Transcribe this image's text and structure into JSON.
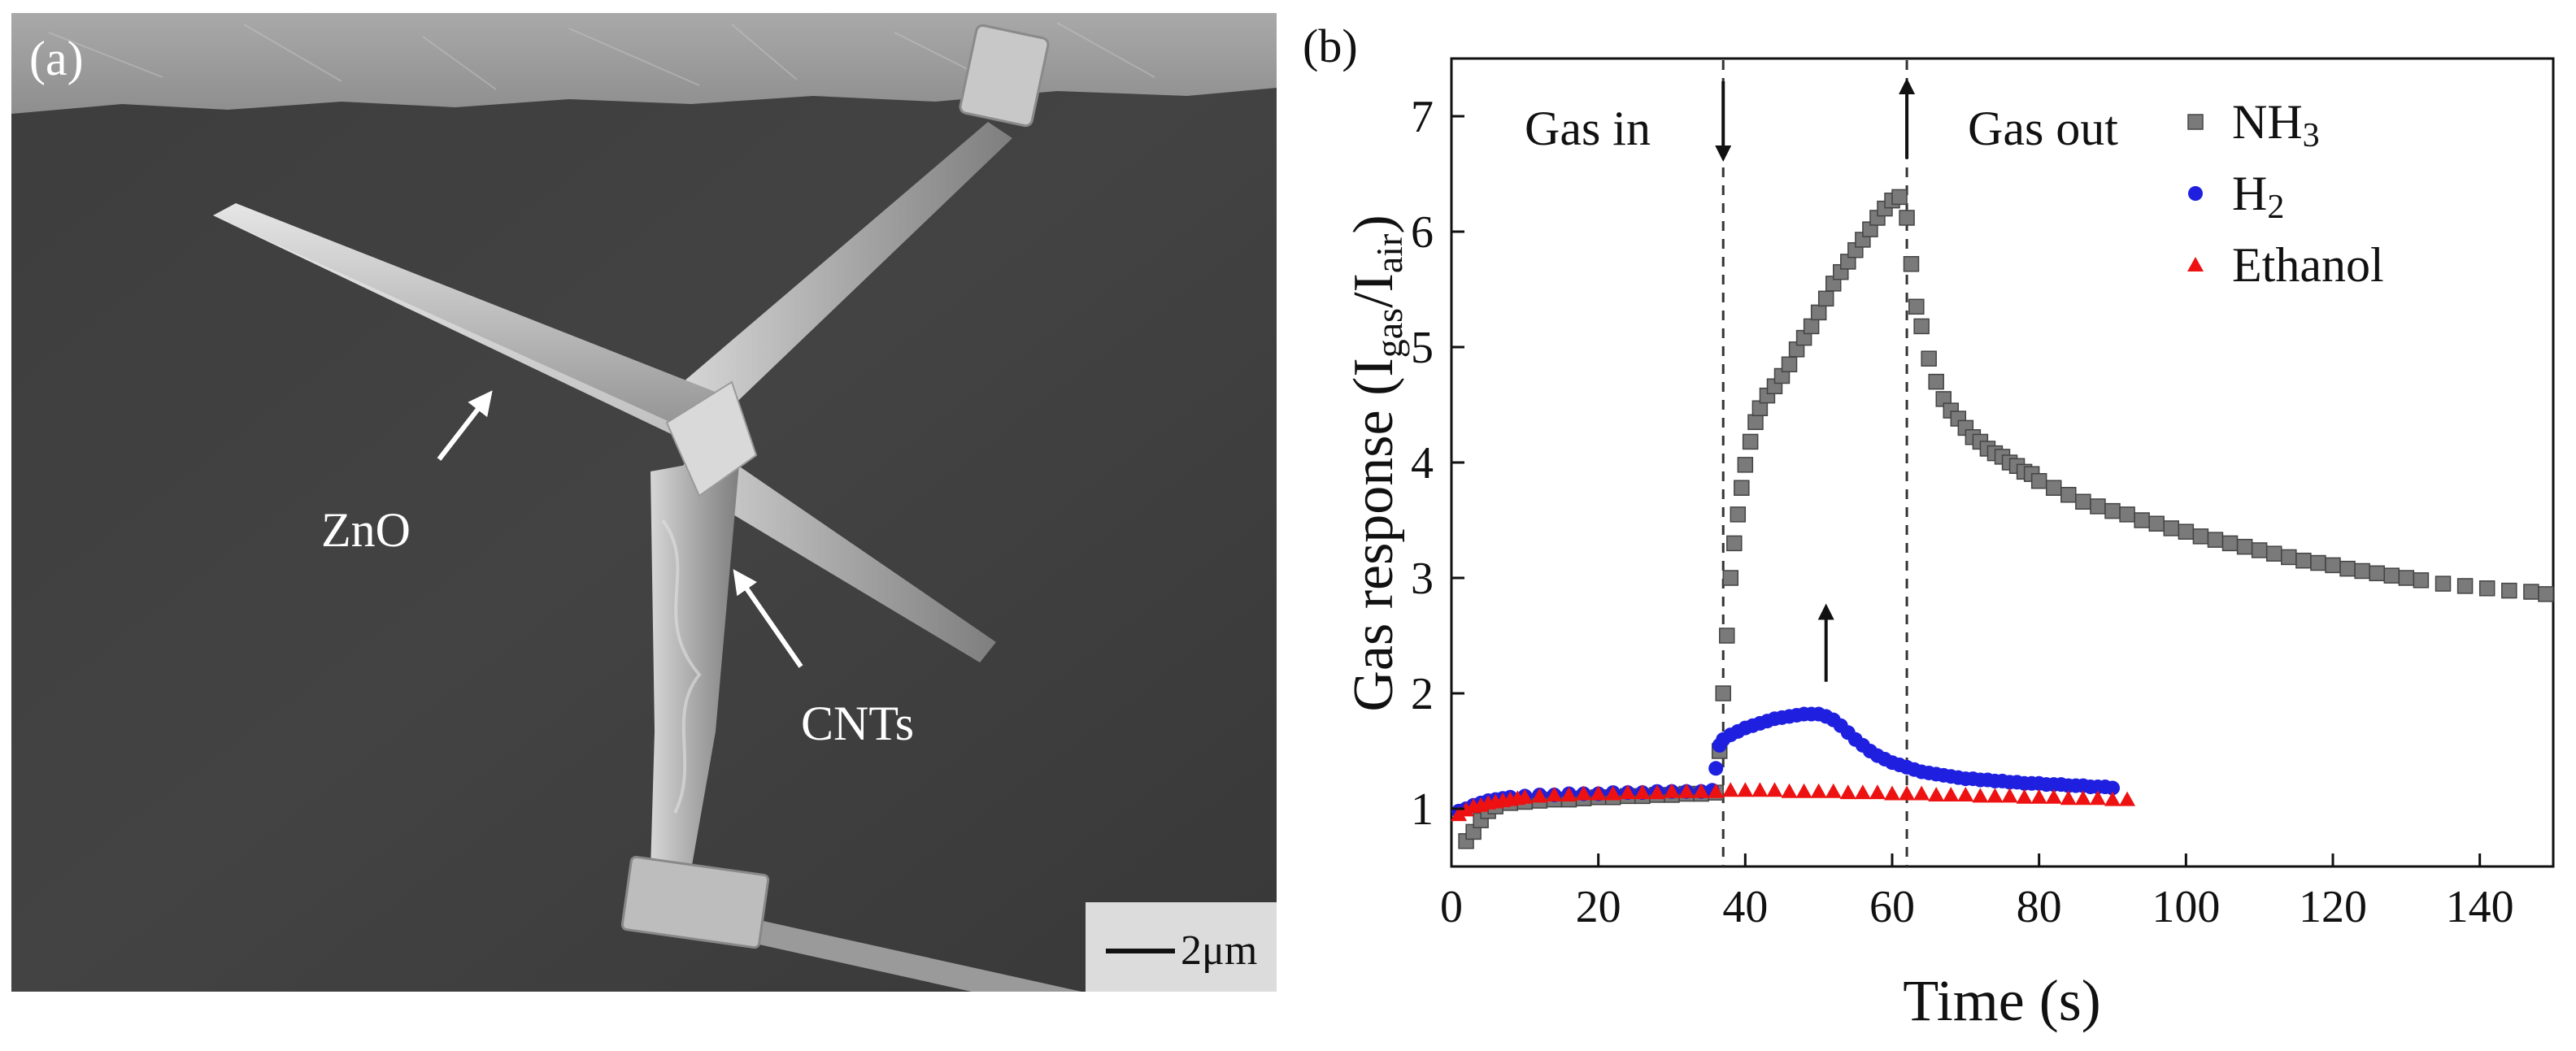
{
  "panel_a": {
    "label": "(a)",
    "annotations": [
      {
        "text": "ZnO"
      },
      {
        "text": "CNTs"
      }
    ],
    "scale_bar": "2μm"
  },
  "panel_b": {
    "label": "(b)",
    "events": [
      {
        "text": "Gas in",
        "time": 37
      },
      {
        "text": "Gas out",
        "time": 62
      }
    ]
  },
  "chart_data": {
    "type": "scatter",
    "xlabel": "Time (s)",
    "ylabel": "Gas response (Igas/Iair)",
    "xlim": [
      0,
      150
    ],
    "ylim": [
      0.5,
      7.5
    ],
    "xticks": [
      0,
      20,
      40,
      60,
      80,
      100,
      120,
      140
    ],
    "yticks": [
      1,
      2,
      3,
      4,
      5,
      6,
      7
    ],
    "grid": false,
    "legend_position": "top-right",
    "series": [
      {
        "name": "NH3",
        "marker": "square",
        "color": "#7a7a7a",
        "points": [
          [
            2,
            0.72
          ],
          [
            3,
            0.8
          ],
          [
            4,
            0.9
          ],
          [
            5,
            0.98
          ],
          [
            6,
            1.02
          ],
          [
            8,
            1.05
          ],
          [
            10,
            1.06
          ],
          [
            12,
            1.07
          ],
          [
            14,
            1.08
          ],
          [
            16,
            1.08
          ],
          [
            18,
            1.09
          ],
          [
            20,
            1.1
          ],
          [
            22,
            1.1
          ],
          [
            24,
            1.11
          ],
          [
            26,
            1.11
          ],
          [
            28,
            1.12
          ],
          [
            30,
            1.12
          ],
          [
            32,
            1.13
          ],
          [
            34,
            1.13
          ],
          [
            36,
            1.14
          ],
          [
            36.5,
            1.5
          ],
          [
            37,
            2.0
          ],
          [
            37.5,
            2.5
          ],
          [
            38,
            3.0
          ],
          [
            38.5,
            3.3
          ],
          [
            39,
            3.55
          ],
          [
            39.5,
            3.78
          ],
          [
            40,
            3.98
          ],
          [
            40.7,
            4.18
          ],
          [
            41.4,
            4.35
          ],
          [
            42,
            4.47
          ],
          [
            43,
            4.58
          ],
          [
            44,
            4.66
          ],
          [
            45,
            4.75
          ],
          [
            46,
            4.85
          ],
          [
            47,
            4.98
          ],
          [
            48,
            5.08
          ],
          [
            49,
            5.18
          ],
          [
            50,
            5.3
          ],
          [
            51,
            5.42
          ],
          [
            52,
            5.55
          ],
          [
            53,
            5.65
          ],
          [
            54,
            5.74
          ],
          [
            55,
            5.84
          ],
          [
            56,
            5.93
          ],
          [
            57,
            6.02
          ],
          [
            58,
            6.12
          ],
          [
            59,
            6.2
          ],
          [
            60,
            6.27
          ],
          [
            61,
            6.3
          ],
          [
            62,
            6.12
          ],
          [
            62.6,
            5.72
          ],
          [
            63.3,
            5.35
          ],
          [
            64,
            5.18
          ],
          [
            65,
            4.9
          ],
          [
            66,
            4.7
          ],
          [
            67,
            4.55
          ],
          [
            68,
            4.45
          ],
          [
            69,
            4.38
          ],
          [
            70,
            4.3
          ],
          [
            71,
            4.22
          ],
          [
            72,
            4.18
          ],
          [
            73,
            4.12
          ],
          [
            74,
            4.08
          ],
          [
            75,
            4.05
          ],
          [
            76,
            4.0
          ],
          [
            77,
            3.97
          ],
          [
            78,
            3.92
          ],
          [
            79,
            3.9
          ],
          [
            80,
            3.84
          ],
          [
            82,
            3.78
          ],
          [
            84,
            3.72
          ],
          [
            86,
            3.66
          ],
          [
            88,
            3.62
          ],
          [
            90,
            3.58
          ],
          [
            92,
            3.55
          ],
          [
            94,
            3.5
          ],
          [
            96,
            3.47
          ],
          [
            98,
            3.43
          ],
          [
            100,
            3.4
          ],
          [
            102,
            3.36
          ],
          [
            104,
            3.33
          ],
          [
            106,
            3.3
          ],
          [
            108,
            3.27
          ],
          [
            110,
            3.24
          ],
          [
            112,
            3.21
          ],
          [
            114,
            3.18
          ],
          [
            116,
            3.15
          ],
          [
            118,
            3.13
          ],
          [
            120,
            3.11
          ],
          [
            122,
            3.08
          ],
          [
            124,
            3.06
          ],
          [
            126,
            3.04
          ],
          [
            128,
            3.02
          ],
          [
            130,
            3.0
          ],
          [
            132,
            2.98
          ],
          [
            135,
            2.95
          ],
          [
            138,
            2.93
          ],
          [
            141,
            2.91
          ],
          [
            144,
            2.89
          ],
          [
            147,
            2.88
          ],
          [
            149,
            2.86
          ]
        ]
      },
      {
        "name": "H2",
        "marker": "circle",
        "color": "#1f1fe0",
        "points": [
          [
            1,
            0.98
          ],
          [
            2,
            1.0
          ],
          [
            3,
            1.03
          ],
          [
            4,
            1.05
          ],
          [
            5,
            1.07
          ],
          [
            6,
            1.08
          ],
          [
            7,
            1.09
          ],
          [
            8,
            1.1
          ],
          [
            10,
            1.11
          ],
          [
            12,
            1.12
          ],
          [
            14,
            1.12
          ],
          [
            16,
            1.13
          ],
          [
            18,
            1.13
          ],
          [
            20,
            1.13
          ],
          [
            22,
            1.14
          ],
          [
            24,
            1.14
          ],
          [
            26,
            1.14
          ],
          [
            28,
            1.15
          ],
          [
            30,
            1.15
          ],
          [
            32,
            1.15
          ],
          [
            34,
            1.15
          ],
          [
            35.5,
            1.16
          ],
          [
            36,
            1.35
          ],
          [
            36.5,
            1.55
          ],
          [
            37,
            1.6
          ],
          [
            38,
            1.64
          ],
          [
            39,
            1.67
          ],
          [
            40,
            1.7
          ],
          [
            41,
            1.72
          ],
          [
            42,
            1.74
          ],
          [
            43,
            1.76
          ],
          [
            44,
            1.78
          ],
          [
            45,
            1.79
          ],
          [
            46,
            1.8
          ],
          [
            47,
            1.81
          ],
          [
            48,
            1.82
          ],
          [
            49,
            1.82
          ],
          [
            50,
            1.82
          ],
          [
            51,
            1.8
          ],
          [
            52,
            1.77
          ],
          [
            53,
            1.72
          ],
          [
            54,
            1.66
          ],
          [
            55,
            1.6
          ],
          [
            56,
            1.55
          ],
          [
            57,
            1.5
          ],
          [
            58,
            1.46
          ],
          [
            59,
            1.43
          ],
          [
            60,
            1.4
          ],
          [
            61,
            1.38
          ],
          [
            62,
            1.36
          ],
          [
            63,
            1.34
          ],
          [
            64,
            1.32
          ],
          [
            65,
            1.31
          ],
          [
            66,
            1.3
          ],
          [
            67,
            1.29
          ],
          [
            68,
            1.28
          ],
          [
            69,
            1.27
          ],
          [
            70,
            1.26
          ],
          [
            71,
            1.26
          ],
          [
            72,
            1.25
          ],
          [
            73,
            1.25
          ],
          [
            74,
            1.24
          ],
          [
            75,
            1.24
          ],
          [
            76,
            1.23
          ],
          [
            77,
            1.23
          ],
          [
            78,
            1.22
          ],
          [
            79,
            1.22
          ],
          [
            80,
            1.22
          ],
          [
            81,
            1.21
          ],
          [
            82,
            1.21
          ],
          [
            83,
            1.21
          ],
          [
            84,
            1.2
          ],
          [
            85,
            1.2
          ],
          [
            86,
            1.2
          ],
          [
            87,
            1.19
          ],
          [
            88,
            1.19
          ],
          [
            89,
            1.19
          ],
          [
            90,
            1.18
          ]
        ]
      },
      {
        "name": "Ethanol",
        "marker": "triangle",
        "color": "#ee1111",
        "points": [
          [
            1,
            0.95
          ],
          [
            2,
            0.99
          ],
          [
            3,
            1.02
          ],
          [
            4,
            1.03
          ],
          [
            5,
            1.05
          ],
          [
            6,
            1.06
          ],
          [
            7,
            1.07
          ],
          [
            8,
            1.08
          ],
          [
            9,
            1.09
          ],
          [
            10,
            1.1
          ],
          [
            12,
            1.11
          ],
          [
            14,
            1.12
          ],
          [
            16,
            1.12
          ],
          [
            18,
            1.13
          ],
          [
            20,
            1.13
          ],
          [
            22,
            1.13
          ],
          [
            24,
            1.14
          ],
          [
            26,
            1.14
          ],
          [
            28,
            1.14
          ],
          [
            30,
            1.15
          ],
          [
            32,
            1.15
          ],
          [
            34,
            1.15
          ],
          [
            36,
            1.15
          ],
          [
            38,
            1.16
          ],
          [
            40,
            1.16
          ],
          [
            42,
            1.16
          ],
          [
            44,
            1.16
          ],
          [
            46,
            1.15
          ],
          [
            48,
            1.15
          ],
          [
            50,
            1.15
          ],
          [
            52,
            1.15
          ],
          [
            54,
            1.14
          ],
          [
            56,
            1.14
          ],
          [
            58,
            1.14
          ],
          [
            60,
            1.13
          ],
          [
            62,
            1.13
          ],
          [
            64,
            1.13
          ],
          [
            66,
            1.12
          ],
          [
            68,
            1.12
          ],
          [
            70,
            1.12
          ],
          [
            72,
            1.11
          ],
          [
            74,
            1.11
          ],
          [
            76,
            1.11
          ],
          [
            78,
            1.1
          ],
          [
            80,
            1.1
          ],
          [
            82,
            1.1
          ],
          [
            84,
            1.09
          ],
          [
            86,
            1.09
          ],
          [
            88,
            1.09
          ],
          [
            90,
            1.08
          ],
          [
            92,
            1.08
          ]
        ]
      }
    ]
  }
}
